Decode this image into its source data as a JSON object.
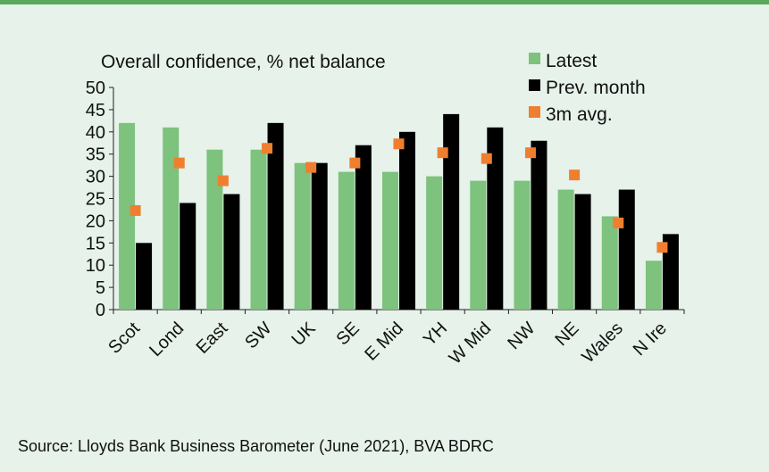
{
  "chart_data": {
    "type": "bar",
    "title": "Overall confidence, % net balance",
    "categories": [
      "Scot",
      "Lond",
      "East",
      "SW",
      "UK",
      "SE",
      "E Mid",
      "YH",
      "W Mid",
      "NW",
      "NE",
      "Wales",
      "N Ire"
    ],
    "ylim": [
      0,
      50
    ],
    "yticks": [
      0,
      5,
      10,
      15,
      20,
      25,
      30,
      35,
      40,
      45,
      50
    ],
    "grid": false,
    "legend_position": "top-right",
    "series": [
      {
        "name": "Latest",
        "type": "bar",
        "color": "#7dc27d",
        "values": [
          42,
          41,
          36,
          36,
          33,
          31,
          31,
          30,
          29,
          29,
          27,
          21,
          11
        ]
      },
      {
        "name": "Prev. month",
        "type": "bar",
        "color": "#000000",
        "values": [
          15,
          24,
          26,
          42,
          33,
          37,
          40,
          44,
          41,
          38,
          26,
          27,
          17
        ]
      },
      {
        "name": "3m avg.",
        "type": "scatter",
        "color": "#ef7f2f",
        "values": [
          22.3,
          33,
          29,
          36.3,
          32,
          33,
          37.3,
          35.3,
          34,
          35.3,
          30.3,
          19.5,
          14
        ]
      }
    ]
  },
  "source": "Source: Lloyds Bank Business Barometer (June 2021), BVA BDRC"
}
